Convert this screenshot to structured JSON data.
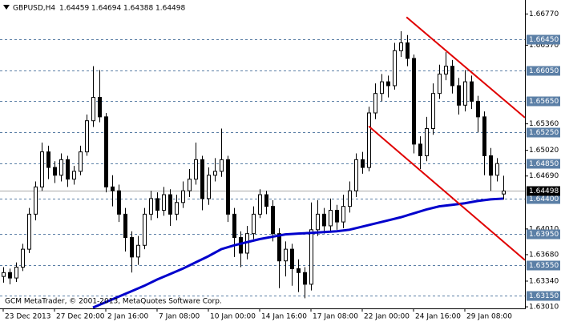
{
  "chart_data": {
    "type": "candlestick",
    "symbol": "GBPUSD,H4",
    "footer": "GCM MetaTrader, © 2001-2013, MetaQuotes Software Corp.",
    "xlim": [
      -0.5,
      81.375
    ],
    "ylim": [
      1.6299,
      1.6693
    ],
    "xticks": [
      {
        "value": 0,
        "label": "23 Dec 2013"
      },
      {
        "value": 8,
        "label": "27 Dec 20:00"
      },
      {
        "value": 16,
        "label": "2 Jan 16:00"
      },
      {
        "value": 24,
        "label": "7 Jan 08:00"
      },
      {
        "value": 32,
        "label": "10 Jan 00:00"
      },
      {
        "value": 40,
        "label": "14 Jan 16:00"
      },
      {
        "value": 48,
        "label": "17 Jan 08:00"
      },
      {
        "value": 56,
        "label": "22 Jan 00:00"
      },
      {
        "value": 64,
        "label": "24 Jan 16:00"
      },
      {
        "value": 72,
        "label": "29 Jan 08:00"
      }
    ],
    "yticks": [
      {
        "value": 1.6677,
        "label": "1.66770"
      },
      {
        "value": 1.6637,
        "label": "1.66370"
      },
      {
        "value": 1.6536,
        "label": "1.65360"
      },
      {
        "value": 1.6502,
        "label": "1.65020"
      },
      {
        "value": 1.6469,
        "label": "1.64690"
      },
      {
        "value": 1.6401,
        "label": "1.64010"
      },
      {
        "value": 1.6368,
        "label": "1.63680"
      },
      {
        "value": 1.6334,
        "label": "1.63340"
      },
      {
        "value": 1.6301,
        "label": "1.63010"
      }
    ],
    "levels": [
      {
        "value": 1.6645,
        "label": "1.66450"
      },
      {
        "value": 1.6605,
        "label": "1.66050"
      },
      {
        "value": 1.6565,
        "label": "1.65650"
      },
      {
        "value": 1.6525,
        "label": "1.65250"
      },
      {
        "value": 1.6485,
        "label": "1.64850"
      },
      {
        "value": 1.644,
        "label": "1.64400"
      },
      {
        "value": 1.6395,
        "label": "1.63950"
      },
      {
        "value": 1.6355,
        "label": "1.63550"
      },
      {
        "value": 1.6315,
        "label": "1.63150"
      }
    ],
    "up_color": "#ffffff",
    "down_color": "#000000",
    "level_color": "#5b7fa6",
    "ohlc": [
      [
        1.634,
        1.6352,
        1.6332,
        1.6345
      ],
      [
        1.6345,
        1.635,
        1.633,
        1.6338
      ],
      [
        1.6338,
        1.6358,
        1.6333,
        1.6352
      ],
      [
        1.6352,
        1.6382,
        1.6347,
        1.6375
      ],
      [
        1.6375,
        1.6428,
        1.637,
        1.642
      ],
      [
        1.642,
        1.6462,
        1.6412,
        1.6455
      ],
      [
        1.6455,
        1.6512,
        1.645,
        1.65
      ],
      [
        1.65,
        1.6508,
        1.6465,
        1.648
      ],
      [
        1.648,
        1.6488,
        1.646,
        1.647
      ],
      [
        1.647,
        1.6498,
        1.6462,
        1.649
      ],
      [
        1.649,
        1.6495,
        1.6455,
        1.6465
      ],
      [
        1.6465,
        1.6482,
        1.6458,
        1.6475
      ],
      [
        1.6475,
        1.6508,
        1.647,
        1.65
      ],
      [
        1.65,
        1.6548,
        1.6495,
        1.654
      ],
      [
        1.654,
        1.661,
        1.6532,
        1.657
      ],
      [
        1.657,
        1.6605,
        1.6538,
        1.6545
      ],
      [
        1.6545,
        1.655,
        1.6448,
        1.6455
      ],
      [
        1.6455,
        1.647,
        1.643,
        1.645
      ],
      [
        1.645,
        1.6458,
        1.641,
        1.642
      ],
      [
        1.642,
        1.6428,
        1.6372,
        1.639
      ],
      [
        1.639,
        1.6398,
        1.6345,
        1.6365
      ],
      [
        1.6365,
        1.6392,
        1.6355,
        1.638
      ],
      [
        1.638,
        1.6428,
        1.6375,
        1.642
      ],
      [
        1.642,
        1.645,
        1.6412,
        1.644
      ],
      [
        1.644,
        1.6448,
        1.6415,
        1.6425
      ],
      [
        1.6425,
        1.6455,
        1.6418,
        1.6445
      ],
      [
        1.6445,
        1.6452,
        1.6405,
        1.642
      ],
      [
        1.642,
        1.6445,
        1.6412,
        1.6435
      ],
      [
        1.6435,
        1.6462,
        1.6428,
        1.645
      ],
      [
        1.645,
        1.6478,
        1.6442,
        1.6465
      ],
      [
        1.6465,
        1.6512,
        1.6458,
        1.649
      ],
      [
        1.649,
        1.6495,
        1.6425,
        1.644
      ],
      [
        1.644,
        1.648,
        1.6432,
        1.647
      ],
      [
        1.647,
        1.6492,
        1.6462,
        1.6475
      ],
      [
        1.6475,
        1.653,
        1.6468,
        1.649
      ],
      [
        1.649,
        1.6495,
        1.641,
        1.642
      ],
      [
        1.642,
        1.6428,
        1.6365,
        1.639
      ],
      [
        1.639,
        1.6398,
        1.6352,
        1.637
      ],
      [
        1.637,
        1.6405,
        1.6362,
        1.6395
      ],
      [
        1.6395,
        1.643,
        1.6388,
        1.642
      ],
      [
        1.642,
        1.6452,
        1.6415,
        1.6445
      ],
      [
        1.6445,
        1.645,
        1.642,
        1.643
      ],
      [
        1.643,
        1.6438,
        1.6385,
        1.6395
      ],
      [
        1.6395,
        1.6402,
        1.6325,
        1.636
      ],
      [
        1.636,
        1.6385,
        1.634,
        1.6375
      ],
      [
        1.6375,
        1.6382,
        1.6328,
        1.635
      ],
      [
        1.635,
        1.6362,
        1.632,
        1.6345
      ],
      [
        1.6345,
        1.6352,
        1.6312,
        1.633
      ],
      [
        1.633,
        1.6435,
        1.6322,
        1.64
      ],
      [
        1.64,
        1.6438,
        1.6392,
        1.642
      ],
      [
        1.642,
        1.6428,
        1.6395,
        1.6405
      ],
      [
        1.6405,
        1.644,
        1.6398,
        1.6425
      ],
      [
        1.6425,
        1.6432,
        1.64,
        1.641
      ],
      [
        1.641,
        1.6445,
        1.6402,
        1.643
      ],
      [
        1.643,
        1.6462,
        1.6422,
        1.645
      ],
      [
        1.645,
        1.6498,
        1.6442,
        1.649
      ],
      [
        1.649,
        1.65,
        1.6472,
        1.648
      ],
      [
        1.648,
        1.6558,
        1.6475,
        1.655
      ],
      [
        1.655,
        1.6588,
        1.6542,
        1.6575
      ],
      [
        1.6575,
        1.66,
        1.6565,
        1.659
      ],
      [
        1.659,
        1.6598,
        1.657,
        1.6585
      ],
      [
        1.6585,
        1.664,
        1.658,
        1.663
      ],
      [
        1.663,
        1.6655,
        1.6622,
        1.664
      ],
      [
        1.664,
        1.665,
        1.661,
        1.662
      ],
      [
        1.662,
        1.6625,
        1.6498,
        1.651
      ],
      [
        1.651,
        1.652,
        1.6478,
        1.6495
      ],
      [
        1.6495,
        1.6545,
        1.6488,
        1.653
      ],
      [
        1.653,
        1.6588,
        1.6522,
        1.6575
      ],
      [
        1.6575,
        1.6612,
        1.6568,
        1.66
      ],
      [
        1.66,
        1.6628,
        1.6592,
        1.661
      ],
      [
        1.661,
        1.6618,
        1.6575,
        1.6585
      ],
      [
        1.6585,
        1.6595,
        1.6548,
        1.656
      ],
      [
        1.656,
        1.6605,
        1.6552,
        1.659
      ],
      [
        1.659,
        1.6598,
        1.6555,
        1.6565
      ],
      [
        1.6565,
        1.6572,
        1.6525,
        1.6545
      ],
      [
        1.6545,
        1.6552,
        1.647,
        1.6495
      ],
      [
        1.6495,
        1.6505,
        1.645,
        1.647
      ],
      [
        1.647,
        1.6492,
        1.6462,
        1.6485
      ],
      [
        1.64459,
        1.64694,
        1.64388,
        1.64498
      ]
    ],
    "ma": {
      "color": "#0000cc",
      "x": [
        14,
        16,
        18,
        20,
        22,
        24,
        26,
        28,
        30,
        32,
        34,
        36,
        38,
        40,
        42,
        44,
        46,
        48,
        50,
        52,
        54,
        56,
        58,
        60,
        62,
        64,
        66,
        68,
        70,
        72,
        74,
        76,
        78
      ],
      "values": [
        1.63,
        1.6307,
        1.6314,
        1.6321,
        1.6328,
        1.6336,
        1.6343,
        1.635,
        1.6358,
        1.6366,
        1.6375,
        1.638,
        1.6384,
        1.6388,
        1.6391,
        1.6394,
        1.6395,
        1.6396,
        1.6397,
        1.6398,
        1.64,
        1.6404,
        1.6408,
        1.6412,
        1.6416,
        1.6421,
        1.6426,
        1.643,
        1.6432,
        1.6434,
        1.6437,
        1.6439,
        1.644
      ]
    },
    "trendlines": {
      "color": "#e00000",
      "lines": [
        {
          "x": [
            62.9,
            81.375
          ],
          "values": [
            1.6673,
            1.6544
          ]
        },
        {
          "x": [
            57,
            81.375
          ],
          "values": [
            1.6533,
            1.6361
          ]
        }
      ]
    }
  }
}
